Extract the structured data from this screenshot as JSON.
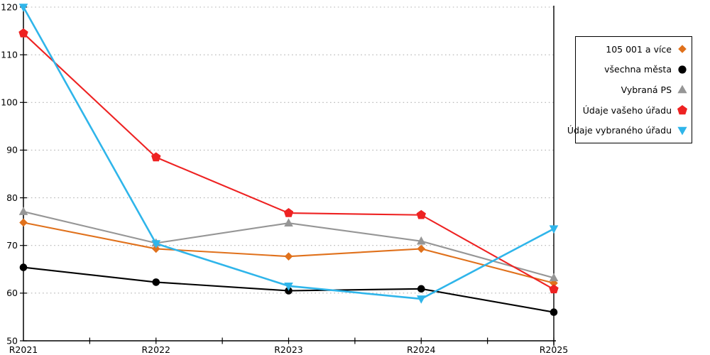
{
  "chart_data": {
    "type": "line",
    "title": "",
    "xlabel": "",
    "ylabel": "",
    "categories": [
      "R2021",
      "R2022",
      "R2023",
      "R2024",
      "R2025"
    ],
    "series": [
      {
        "name": "105 001 a více",
        "color": "#E0711C",
        "marker": "diamond",
        "values": [
          74.8,
          69.3,
          67.7,
          69.3,
          62.1
        ]
      },
      {
        "name": "všechna města",
        "color": "#000000",
        "marker": "circle",
        "values": [
          65.4,
          62.3,
          60.5,
          60.9,
          56.0
        ]
      },
      {
        "name": "Vybraná PS",
        "color": "#969696",
        "marker": "triangle-up",
        "values": [
          77.1,
          70.5,
          74.7,
          70.9,
          63.2
        ]
      },
      {
        "name": "Údaje vašeho úřadu",
        "color": "#EE2222",
        "marker": "pentagon",
        "values": [
          114.5,
          88.5,
          76.8,
          76.4,
          60.8
        ]
      },
      {
        "name": "Údaje vybraného úřadu",
        "color": "#2FB5EA",
        "marker": "triangle-down",
        "values": [
          120.0,
          70.4,
          61.5,
          58.8,
          73.5
        ]
      }
    ],
    "ylim": [
      50,
      120
    ],
    "yticks": [
      50,
      60,
      70,
      80,
      90,
      100,
      110,
      120
    ],
    "grid": "horizontal-dotted",
    "legend_position": "right-outside",
    "right_boundary_at_category": "R2025"
  },
  "colors": {
    "grid": "#b3b3b3",
    "axis": "#000000",
    "background": "#ffffff"
  }
}
